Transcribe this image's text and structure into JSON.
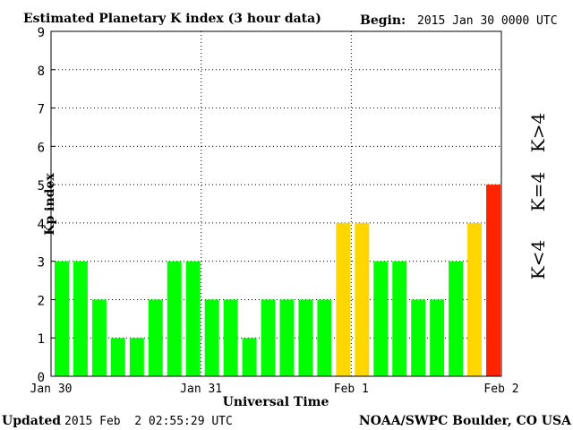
{
  "header": {
    "title": "Estimated Planetary K index (3 hour data)",
    "begin_label": "Begin:",
    "begin_value": "2015 Jan 30 0000 UTC"
  },
  "footer": {
    "updated_label": "Updated",
    "updated_value": "2015 Feb  2 02:55:29 UTC",
    "source": "NOAA/SWPC Boulder, CO USA"
  },
  "legend": {
    "low": "K<4",
    "mid": "K=4",
    "high": "K>4"
  },
  "colors": {
    "low": "#00ff00",
    "mid": "#ffd700",
    "high": "#ff2400"
  },
  "chart_data": {
    "type": "bar",
    "title": "Estimated Planetary K index (3 hour data)",
    "xlabel": "Universal Time",
    "ylabel": "Kp index",
    "ylim": [
      0,
      9
    ],
    "yticks": [
      0,
      1,
      2,
      3,
      4,
      5,
      6,
      7,
      8,
      9
    ],
    "xtick_labels": [
      "Jan 30",
      "Jan 31",
      "Feb 1",
      "Feb 2"
    ],
    "grid": true,
    "interval_hours": 3,
    "values": [
      3,
      3,
      2,
      1,
      1,
      2,
      3,
      3,
      2,
      2,
      1,
      2,
      2,
      2,
      2,
      4,
      4,
      3,
      3,
      2,
      2,
      3,
      4,
      5
    ]
  }
}
